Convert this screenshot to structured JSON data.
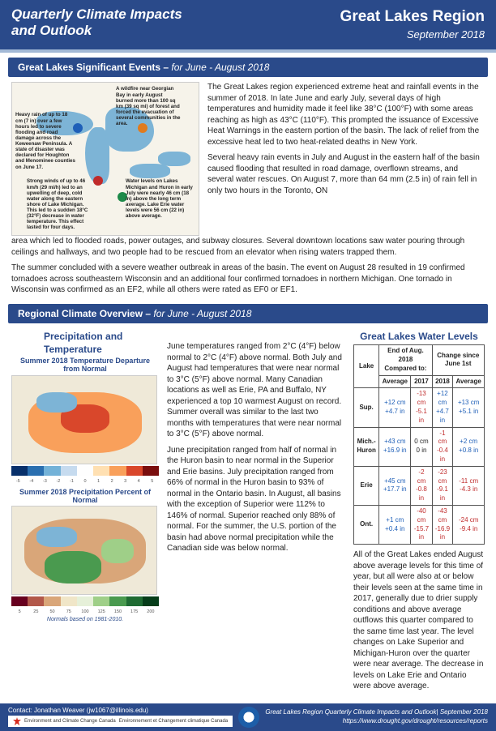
{
  "header": {
    "left_line1": "Quarterly Climate Impacts",
    "left_line2": "and Outlook",
    "right_title": "Great Lakes Region",
    "right_sub": "September 2018"
  },
  "sections": {
    "events_title": "Great Lakes Significant Events –",
    "events_em": " for June - August 2018",
    "overview_title": "Regional Climate Overview –",
    "overview_em": " for June - August 2018"
  },
  "map_notes": {
    "n1": "A wildfire near Georgian Bay in early August burned more than 100 sq km (39 sq mi) of forest and forced the evacuation of several communities in the area.",
    "n2": "Heavy rain of up to 18 cm (7 in) over a few hours led to severe flooding and road damage across the Keweenaw Peninsula. A state of disaster was declared for Houghton and Menominee counties on June 17.",
    "n3": "Strong winds of up to 46 km/h (29 mi/h) led to an upwelling of deep, cold water along the eastern shore of Lake Michigan. This led to a sudden 18°C (32°F) decrease in water temperature. This effect lasted for four days.",
    "n4": "Water levels on Lakes Michigan and Huron in early July were nearly 46 cm (18 in) above the long term average. Lake Erie water levels were 56 cm (22 in) above average."
  },
  "events_body": {
    "p1": "The Great Lakes region experienced extreme heat and rainfall events in the summer of 2018. In late June and early July, several days of high temperatures and humidity made it feel like 38°C (100°F) with some areas reaching as high as 43°C (110°F). This prompted the issuance of Excessive Heat Warnings in the eastern portion of the basin. The lack of relief from the excessive heat led to two heat-related deaths in New York.",
    "p2": "Several heavy rain events in July and August in the eastern half of the basin caused flooding that resulted in road damage, overflown streams, and several water rescues. On August 7, more than 64 mm (2.5 in) of rain fell in only two hours in the Toronto, ON",
    "p3": "area which led to flooded roads, power outages, and subway closures. Several downtown locations saw water pouring through ceilings and hallways, and two people had to be rescued from an elevator when rising waters trapped them.",
    "p4": "The summer concluded with a severe weather outbreak in areas of the basin. The event on August 28 resulted in 19 confirmed tornadoes across southeastern Wisconsin and an additional four confirmed tornadoes in northern Michigan. One tornado in Wisconsin was confirmed as an EF2, while all others were rated as EF0 or EF1."
  },
  "overview": {
    "subheads": {
      "precip_temp": "Precipitation and Temperature",
      "water_levels": "Great Lakes Water Levels"
    },
    "map_titles": {
      "temp": "Summer 2018 Temperature Departure from Normal",
      "precip": "Summer 2018 Precipitation Percent of Normal"
    },
    "temp_scale": {
      "colors": [
        "#08306b",
        "#2a6fb0",
        "#73b2d8",
        "#c6dbef",
        "#fefefe",
        "#ffe0b2",
        "#f9a05b",
        "#d9472b",
        "#7a0e0e"
      ],
      "labels": [
        "-5",
        "-4",
        "-3",
        "-2",
        "-1",
        "0",
        "1",
        "2",
        "3",
        "4",
        "5"
      ]
    },
    "precip_scale": {
      "colors": [
        "#67001f",
        "#b2584a",
        "#d9a679",
        "#f0e6c8",
        "#e6f0d9",
        "#9fcf88",
        "#4a9a4f",
        "#1f6b33",
        "#063d1a"
      ],
      "labels": [
        "5",
        "25",
        "50",
        "75",
        "100",
        "125",
        "150",
        "175",
        "200"
      ]
    },
    "note": "Normals based on 1981-2010.",
    "body": {
      "p1": "June temperatures ranged from 2°C (4°F) below normal to 2°C (4°F) above normal. Both July and August had temperatures that were near normal to 3°C (5°F) above normal. Many Canadian locations as well as Erie, PA and Buffalo, NY experienced a top 10 warmest August on record. Summer overall was similar to the last two months with temperatures that were near normal to 3°C (5°F) above normal.",
      "p2": "June precipitation ranged from half of normal in the Huron basin to near normal in the Superior and Erie basins. July precipitation ranged from 66% of normal in the Huron basin to 93% of normal in the Ontario basin. In August, all basins with the exception of Superior were 112% to 146% of normal. Superior reached only 88% of normal. For the summer, the U.S. portion of the basin had above normal precipitation while the Canadian side was below normal."
    },
    "wl_note": "All of the Great Lakes ended August above average levels for this time of year, but all were also at or below their levels seen at the same time in 2017, generally due to drier supply conditions and above average outflows this quarter compared to the same time last year. The level changes on Lake Superior and Michigan-Huron over the quarter were near average. The decrease in levels on Lake Erie and Ontario were above average."
  },
  "wl_table": {
    "head1": "End of Aug. 2018 Compared to:",
    "head2": "Change since June 1st",
    "cols": [
      "Lake",
      "Average",
      "2017",
      "2018",
      "Average"
    ],
    "rows": [
      {
        "lake": "Sup.",
        "a": "+12 cm",
        "a2": "+4.7 in",
        "b": "-13 cm",
        "b2": "-5.1 in",
        "c": "+12 cm",
        "c2": "+4.7 in",
        "d": "+13 cm",
        "d2": "+5.1 in",
        "cls": [
          "pos",
          "neg",
          "pos",
          "pos"
        ]
      },
      {
        "lake": "Mich.-Huron",
        "a": "+43 cm",
        "a2": "+16.9 in",
        "b": "0 cm",
        "b2": "0 in",
        "c": "-1 cm",
        "c2": "-0.4 in",
        "d": "+2 cm",
        "d2": "+0.8 in",
        "cls": [
          "pos",
          "zero",
          "neg",
          "pos"
        ]
      },
      {
        "lake": "Erie",
        "a": "+45 cm",
        "a2": "+17.7 in",
        "b": "-2 cm",
        "b2": "-0.8 in",
        "c": "-23 cm",
        "c2": "-9.1 in",
        "d": "-11 cm",
        "d2": "-4.3 in",
        "cls": [
          "pos",
          "neg",
          "neg",
          "neg"
        ]
      },
      {
        "lake": "Ont.",
        "a": "+1 cm",
        "a2": "+0.4 in",
        "b": "-40 cm",
        "b2": "-15.7 in",
        "c": "-43 cm",
        "c2": "-16.9 in",
        "d": "-24 cm",
        "d2": "-9.4 in",
        "cls": [
          "pos",
          "neg",
          "neg",
          "neg"
        ]
      }
    ]
  },
  "footer": {
    "contact": "Contact:  Jonathan Weaver (jw1067@illinois.edu)",
    "eccc1": "Environment and Climate Change Canada",
    "eccc2": "Environnement et Changement climatique Canada",
    "right1": "Great Lakes Region Quarterly Climate Impacts and Outlook| September 2018",
    "right2": "https://www.drought.gov/drought/resources/reports"
  }
}
